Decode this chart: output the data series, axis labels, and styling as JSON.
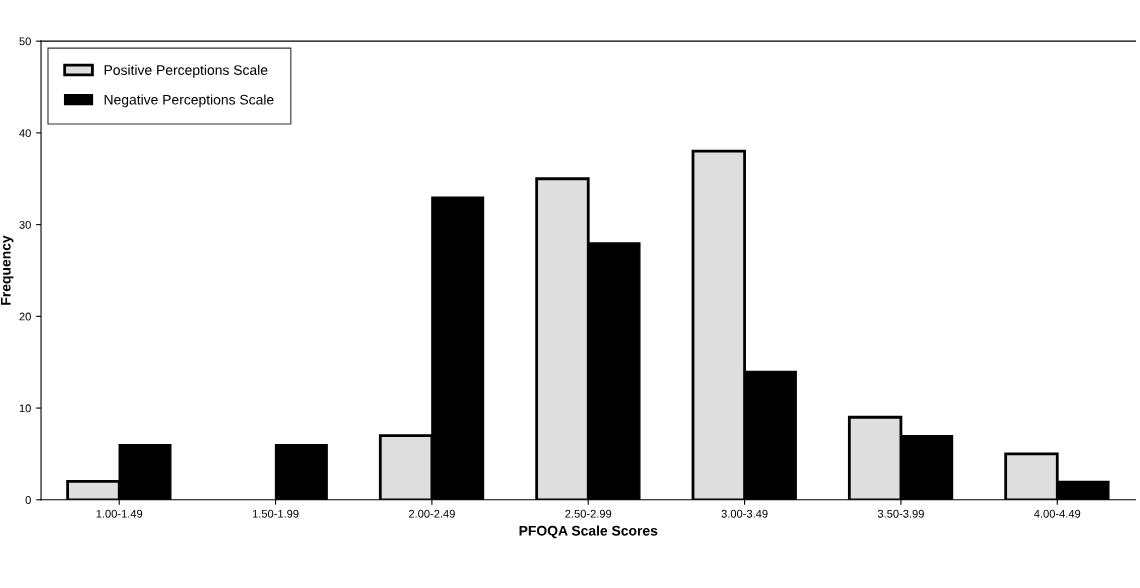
{
  "chart_data": {
    "type": "bar",
    "xlabel": "PFOQA Scale Scores",
    "ylabel": "Frequency",
    "categories": [
      "1.00-1.49",
      "1.50-1.99",
      "2.00-2.49",
      "2.50-2.99",
      "3.00-3.49",
      "3.50-3.99",
      "4.00-4.49"
    ],
    "series": [
      {
        "name": "Positive Perceptions Scale",
        "color": "#dedede",
        "values": [
          2,
          0,
          7,
          35,
          38,
          9,
          5
        ]
      },
      {
        "name": "Negative Perceptions Scale",
        "color": "#000000",
        "values": [
          6,
          6,
          33,
          28,
          14,
          7,
          2
        ]
      }
    ],
    "ylim": [
      0,
      50
    ],
    "yticks": [
      0,
      10,
      20,
      30,
      40,
      50
    ],
    "grid": false,
    "legend": "top left"
  }
}
